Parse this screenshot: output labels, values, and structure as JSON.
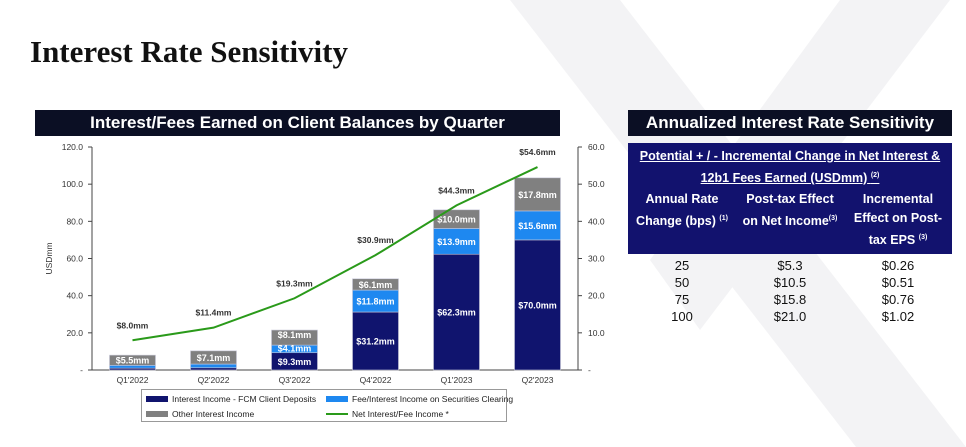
{
  "title": "Interest Rate Sensitivity",
  "chart_banner": "Interest/Fees Earned on Client Balances by Quarter",
  "table_banner": "Annualized Interest Rate Sensitivity",
  "colors": {
    "fcm": "#10146e",
    "fee": "#1e88f0",
    "other": "#808080",
    "line": "#2a9a1a"
  },
  "chart_data": {
    "type": "bar",
    "categories": [
      "Q1'2022",
      "Q2'2022",
      "Q3'2022",
      "Q4'2022",
      "Q1'2023",
      "Q2'2023"
    ],
    "ylabel": "USDmm",
    "ylim": [
      0,
      120
    ],
    "y2lim": [
      0,
      60
    ],
    "yticks": [
      "-",
      "20.0",
      "40.0",
      "60.0",
      "80.0",
      "100.0",
      "120.0"
    ],
    "y2ticks": [
      "-",
      "10.0",
      "20.0",
      "30.0",
      "40.0",
      "50.0",
      "60.0"
    ],
    "series": [
      {
        "name": "Interest Income - FCM Client Deposits",
        "values": [
          1.0,
          1.2,
          9.3,
          31.2,
          62.3,
          70.0
        ],
        "labels": [
          "",
          "",
          "$9.3mm",
          "$31.2mm",
          "$62.3mm",
          "$70.0mm"
        ]
      },
      {
        "name": "Fee/Interest Income on Securities Clearing",
        "values": [
          1.5,
          2.0,
          4.1,
          11.8,
          13.9,
          15.6
        ],
        "labels": [
          "",
          "",
          "$4.1mm",
          "$11.8mm",
          "$13.9mm",
          "$15.6mm"
        ]
      },
      {
        "name": "Other Interest Income",
        "values": [
          5.5,
          7.1,
          8.1,
          6.1,
          10.0,
          17.8
        ],
        "labels": [
          "$5.5mm",
          "$7.1mm",
          "$8.1mm",
          "$6.1mm",
          "$10.0mm",
          "$17.8mm"
        ]
      },
      {
        "name": "Net Interest/Fee Income *",
        "type": "line",
        "axis": "right",
        "values": [
          8.0,
          11.4,
          19.3,
          30.9,
          44.3,
          54.6
        ],
        "labels": [
          "$8.0mm",
          "$11.4mm",
          "$19.3mm",
          "$30.9mm",
          "$44.3mm",
          "$54.6mm"
        ]
      }
    ],
    "legend": "bottom"
  },
  "table": {
    "title1": "Potential + / - Incremental Change in Net Interest &",
    "title2": "12b1 Fees Earned (USDmm)",
    "title_note": "(2)",
    "headers": [
      {
        "l1": "Annual Rate",
        "l2": "Change (bps)",
        "note": "(1)"
      },
      {
        "l1": "Post-tax Effect",
        "l2": "on Net Income",
        "note": "(3)"
      },
      {
        "l1": "Incremental",
        "l2": "Effect on Post-",
        "l3": "tax EPS",
        "note": "(3)"
      }
    ],
    "rows": [
      [
        "25",
        "$5.3",
        "$0.26"
      ],
      [
        "50",
        "$10.5",
        "$0.51"
      ],
      [
        "75",
        "$15.8",
        "$0.76"
      ],
      [
        "100",
        "$21.0",
        "$1.02"
      ]
    ]
  }
}
